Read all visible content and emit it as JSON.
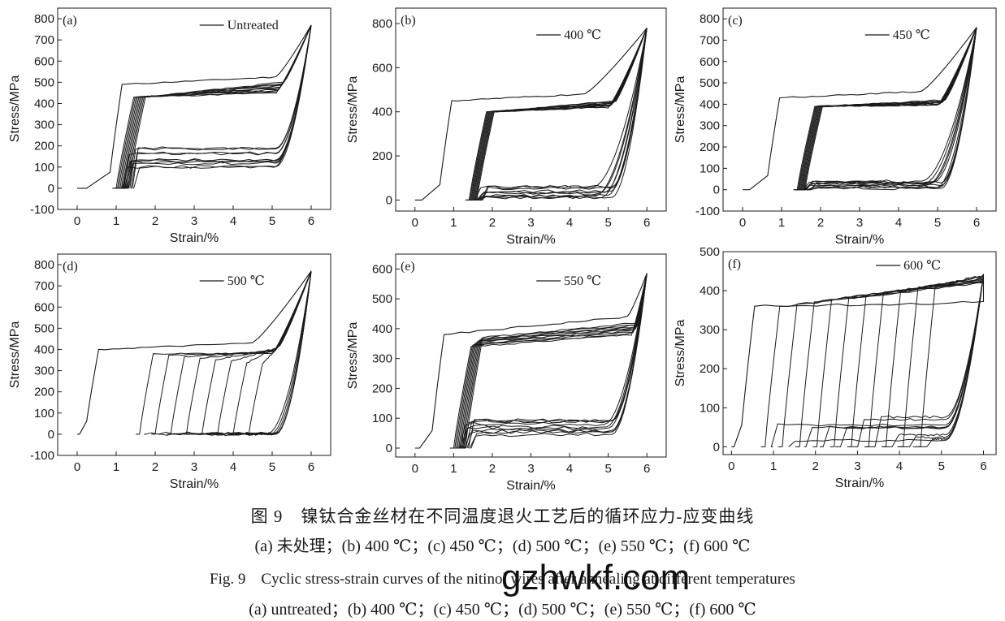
{
  "chart_data": [
    {
      "type": "line",
      "panel": "(a)",
      "legend": "Untreated",
      "legend_position": "top-right",
      "xlabel": "Strain/%",
      "ylabel": "Stress/MPa",
      "xlim": [
        -0.5,
        6.5
      ],
      "ylim": [
        -100,
        850
      ],
      "xticks": [
        0,
        1,
        2,
        3,
        4,
        5,
        6
      ],
      "yticks": [
        -100,
        0,
        100,
        200,
        300,
        400,
        500,
        600,
        700,
        800
      ],
      "cycles": 10,
      "first_cycle": {
        "onset_strain": 0.8,
        "upper_plateau_start": 490,
        "upper_plateau_end": 525,
        "upper_plateau_end_strain": 5.1
      },
      "later_cycles": {
        "loading_start_strain": [
          1.0,
          1.3
        ],
        "upper_plateau_start": 430,
        "upper_plateau_end": [
          450,
          500
        ],
        "plateau_end_strain": [
          5.1,
          5.3
        ],
        "lower_plateau": [
          95,
          190
        ],
        "unload_end_strain": [
          4.15,
          4.6
        ]
      },
      "max_strain": 6.0,
      "max_stress": 770
    },
    {
      "type": "line",
      "panel": "(b)",
      "legend": "400 ℃",
      "legend_position": "top-right",
      "xlabel": "Strain/%",
      "ylabel": "Stress/MPa",
      "xlim": [
        -0.5,
        6.5
      ],
      "ylim": [
        -50,
        870
      ],
      "xticks": [
        0,
        1,
        2,
        3,
        4,
        5,
        6
      ],
      "yticks": [
        0,
        200,
        400,
        600,
        800
      ],
      "cycles": 10,
      "first_cycle": {
        "onset_strain": 0.6,
        "upper_plateau_start": 450,
        "upper_plateau_end": 480,
        "upper_plateau_end_strain": 4.4
      },
      "later_cycles": {
        "loading_start_strain": [
          1.4,
          1.6
        ],
        "upper_plateau_start": 400,
        "upper_plateau_end": [
          420,
          450
        ],
        "plateau_end_strain": [
          5.0,
          5.2
        ],
        "lower_plateau": [
          10,
          60
        ],
        "unload_end_strain": [
          3.7,
          4.4
        ]
      },
      "max_strain": 6.0,
      "max_stress": 780
    },
    {
      "type": "line",
      "panel": "(c)",
      "legend": "450 ℃",
      "legend_position": "top-right",
      "xlabel": "Strain/%",
      "ylabel": "Stress/MPa",
      "xlim": [
        -0.5,
        6.5
      ],
      "ylim": [
        -100,
        850
      ],
      "xticks": [
        0,
        1,
        2,
        3,
        4,
        5,
        6
      ],
      "yticks": [
        -100,
        0,
        100,
        200,
        300,
        400,
        500,
        600,
        700,
        800
      ],
      "cycles": 10,
      "first_cycle": {
        "onset_strain": 0.6,
        "upper_plateau_start": 430,
        "upper_plateau_end": 460,
        "upper_plateau_end_strain": 4.6
      },
      "later_cycles": {
        "loading_start_strain": [
          1.4,
          1.6
        ],
        "upper_plateau_start": 390,
        "upper_plateau_end": [
          395,
          420
        ],
        "plateau_end_strain": [
          5.0,
          5.2
        ],
        "lower_plateau": [
          5,
          45
        ],
        "unload_end_strain": [
          3.7,
          4.4
        ]
      },
      "max_strain": 6.0,
      "max_stress": 760
    },
    {
      "type": "line",
      "panel": "(d)",
      "legend": "500 ℃",
      "legend_position": "top-right",
      "xlabel": "Strain/%",
      "ylabel": "Stress/MPa",
      "xlim": [
        -0.5,
        6.5
      ],
      "ylim": [
        -100,
        850
      ],
      "xticks": [
        0,
        1,
        2,
        3,
        4,
        5,
        6
      ],
      "yticks": [
        -100,
        0,
        100,
        200,
        300,
        400,
        500,
        600,
        700,
        800
      ],
      "cycles": 8,
      "first_cycle": {
        "onset_strain": 0.2,
        "upper_plateau_start": 400,
        "upper_plateau_end": 430,
        "upper_plateau_end_strain": 4.5
      },
      "later_cycles": {
        "loading_start_strain": [
          1.6,
          4.4
        ],
        "upper_plateau_start": [
          330,
          380
        ],
        "upper_plateau_end": [
          380,
          420
        ],
        "plateau_end_strain": [
          5.0,
          5.2
        ],
        "lower_plateau": [
          0,
          5
        ],
        "unload_end_strain": [
          4.0,
          4.5
        ]
      },
      "max_strain": 6.0,
      "max_stress": 770
    },
    {
      "type": "line",
      "panel": "(e)",
      "legend": "550 ℃",
      "legend_position": "top-right",
      "xlabel": "Strain/%",
      "ylabel": "Stress/MPa",
      "xlim": [
        -0.5,
        6.5
      ],
      "ylim": [
        -30,
        650
      ],
      "xticks": [
        0,
        1,
        2,
        3,
        4,
        5,
        6
      ],
      "yticks": [
        0,
        100,
        200,
        300,
        400,
        500,
        600
      ],
      "cycles": 10,
      "first_cycle": {
        "onset_strain": 0.4,
        "upper_plateau_start": 380,
        "upper_plateau_end": 440,
        "upper_plateau_end_strain": 5.5
      },
      "later_cycles": {
        "loading_start_strain": [
          1.0,
          1.3
        ],
        "upper_plateau_start": [
          340,
          370
        ],
        "upper_plateau_end": [
          380,
          420
        ],
        "plateau_end_strain": [
          5.6,
          5.8
        ],
        "lower_plateau": [
          40,
          95
        ],
        "unload_end_strain": [
          4.0,
          4.5
        ]
      },
      "max_strain": 6.0,
      "max_stress": 585
    },
    {
      "type": "line",
      "panel": "(f)",
      "legend": "600 ℃",
      "legend_position": "top-center",
      "xlabel": "Strain/%",
      "ylabel": "Stress/MPa",
      "xlim": [
        -0.2,
        6.3
      ],
      "ylim": [
        -20,
        500
      ],
      "xticks": [
        0,
        1,
        2,
        3,
        4,
        5,
        6
      ],
      "yticks": [
        0,
        100,
        200,
        300,
        400,
        500
      ],
      "cycles": 10,
      "first_cycle": {
        "onset_strain": 0.2,
        "upper_plateau_start": 360,
        "upper_plateau_end": 370,
        "upper_plateau_end_strain": 6.0
      },
      "later_cycles": {
        "loading_start_strain": [
          0.8,
          4.5
        ],
        "upper_plateau_start": [
          360,
          410
        ],
        "upper_plateau_end": [
          420,
          440
        ],
        "plateau_end_strain": [
          6.0,
          6.0
        ],
        "lower_plateau": [
          15,
          80
        ],
        "unload_end_strain": [
          4.3,
          4.8
        ]
      },
      "max_strain": 6.0,
      "max_stress": 440
    }
  ],
  "caption": {
    "cn_title": "图 9　镍钛合金丝材在不同温度退火工艺后的循环应力-应变曲线",
    "cn_sub": "(a) 未处理；(b) 400 ℃；(c) 450 ℃；(d) 500 ℃；(e) 550 ℃；(f) 600 ℃",
    "en_title": "Fig. 9　Cyclic stress-strain curves of the nitinol wires after annealing at different temperatures",
    "en_sub": "(a) untreated；(b) 400 ℃；(c) 450 ℃；(d) 500 ℃；(e) 550 ℃；(f) 600 ℃"
  },
  "watermark": "gzhwkf.com",
  "colors": {
    "curve": "#1a1a1a",
    "axis": "#1a1a1a",
    "background": "#ffffff"
  }
}
